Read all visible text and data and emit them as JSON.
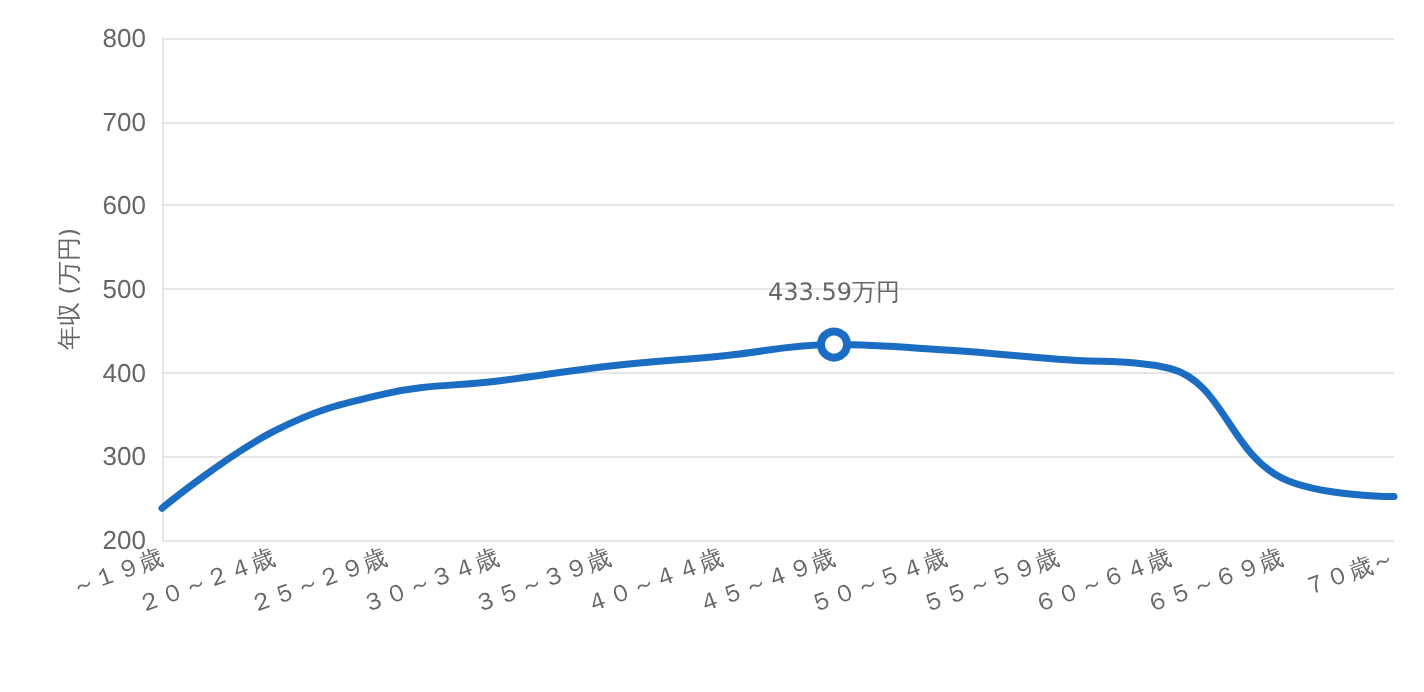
{
  "chart_data": {
    "type": "line",
    "ylabel": "年収 (万円)",
    "categories": [
      "～１９歳",
      "２０～２４歳",
      "２５～２９歳",
      "３０～３４歳",
      "３５～３９歳",
      "４０～４４歳",
      "４５～４９歳",
      "５０～５４歳",
      "５５～５９歳",
      "６０～６４歳",
      "６５～６９歳",
      "７０歳～"
    ],
    "series": [
      {
        "color": "#1a6dc2",
        "values": [
          238,
          330,
          375,
          390,
          408,
          420,
          433.59,
          427,
          416,
          405,
          274,
          252
        ],
        "value_labels": [
          null,
          null,
          null,
          null,
          null,
          null,
          "433.59万円",
          null,
          null,
          null,
          null,
          null
        ]
      }
    ],
    "ylim": [
      200,
      800
    ],
    "yticks": [
      200,
      300,
      400,
      500,
      600,
      700,
      800
    ],
    "grid": "y",
    "line_style": "solid"
  }
}
